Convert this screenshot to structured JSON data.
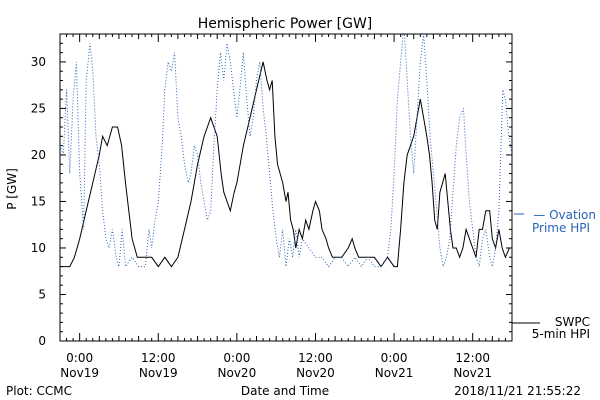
{
  "chart_data": {
    "type": "line",
    "title": "Hemispheric Power [GW]",
    "ylabel": "P [GW]",
    "xlabel": "Date and Time",
    "ylim": [
      0,
      33
    ],
    "yticks": [
      0,
      5,
      10,
      15,
      20,
      25,
      30
    ],
    "x_range_hours": [
      -3,
      66
    ],
    "xticks": [
      {
        "hour": 0,
        "time": "0:00",
        "date": "Nov19"
      },
      {
        "hour": 12,
        "time": "12:00",
        "date": "Nov19"
      },
      {
        "hour": 24,
        "time": "0:00",
        "date": "Nov20"
      },
      {
        "hour": 36,
        "time": "12:00",
        "date": "Nov20"
      },
      {
        "hour": 48,
        "time": "0:00",
        "date": "Nov21"
      },
      {
        "hour": 60,
        "time": "12:00",
        "date": "Nov21"
      }
    ],
    "series": [
      {
        "name": "SWPC 5-min HPI",
        "style": "solid",
        "color": "#000000",
        "points": [
          [
            -3,
            8
          ],
          [
            -1.5,
            8
          ],
          [
            -0.8,
            9
          ],
          [
            0,
            11
          ],
          [
            1,
            14
          ],
          [
            2,
            17
          ],
          [
            3,
            20
          ],
          [
            3.5,
            22
          ],
          [
            4.2,
            21
          ],
          [
            5,
            23
          ],
          [
            5.8,
            23
          ],
          [
            6.4,
            21
          ],
          [
            7,
            17
          ],
          [
            7.5,
            14
          ],
          [
            8,
            11
          ],
          [
            8.8,
            9
          ],
          [
            9.5,
            9
          ],
          [
            11,
            9
          ],
          [
            12,
            8
          ],
          [
            13,
            9
          ],
          [
            14,
            8
          ],
          [
            15,
            9
          ],
          [
            16,
            12
          ],
          [
            17,
            15
          ],
          [
            18,
            19
          ],
          [
            19,
            22
          ],
          [
            19.5,
            23
          ],
          [
            20,
            24
          ],
          [
            20.5,
            23
          ],
          [
            21,
            22
          ],
          [
            21.6,
            18
          ],
          [
            22,
            16
          ],
          [
            23,
            14
          ],
          [
            23.6,
            16
          ],
          [
            24,
            17
          ],
          [
            25,
            21
          ],
          [
            26,
            24
          ],
          [
            27,
            27
          ],
          [
            28,
            30
          ],
          [
            28.6,
            28
          ],
          [
            29,
            27
          ],
          [
            29.4,
            28
          ],
          [
            29.8,
            22
          ],
          [
            30.2,
            19
          ],
          [
            30.6,
            18
          ],
          [
            31,
            17
          ],
          [
            31.5,
            15
          ],
          [
            31.8,
            16
          ],
          [
            32.2,
            13
          ],
          [
            32.6,
            12
          ],
          [
            33,
            10
          ],
          [
            33.5,
            12
          ],
          [
            34,
            11
          ],
          [
            34.5,
            13
          ],
          [
            35,
            12
          ],
          [
            35.6,
            14
          ],
          [
            36,
            15
          ],
          [
            36.6,
            14
          ],
          [
            37,
            12
          ],
          [
            37.6,
            11
          ],
          [
            38,
            10
          ],
          [
            38.6,
            9
          ],
          [
            40,
            9
          ],
          [
            41,
            10
          ],
          [
            41.6,
            11
          ],
          [
            42,
            10
          ],
          [
            42.6,
            9
          ],
          [
            44,
            9
          ],
          [
            45,
            9
          ],
          [
            46,
            8
          ],
          [
            47,
            9
          ],
          [
            48,
            8
          ],
          [
            48.5,
            8
          ],
          [
            49,
            12
          ],
          [
            49.5,
            17
          ],
          [
            50,
            20
          ],
          [
            50.5,
            21
          ],
          [
            51,
            22
          ],
          [
            51.5,
            24
          ],
          [
            52,
            26
          ],
          [
            52.5,
            24
          ],
          [
            53,
            22
          ],
          [
            53.4,
            20
          ],
          [
            53.8,
            17
          ],
          [
            54.2,
            13
          ],
          [
            54.6,
            12
          ],
          [
            55,
            16
          ],
          [
            55.4,
            17
          ],
          [
            55.8,
            18
          ],
          [
            56.2,
            15
          ],
          [
            56.6,
            12
          ],
          [
            57,
            10
          ],
          [
            57.5,
            10
          ],
          [
            58,
            9
          ],
          [
            58.5,
            10
          ],
          [
            59,
            12
          ],
          [
            59.5,
            11
          ],
          [
            60,
            10
          ],
          [
            60.5,
            9
          ],
          [
            61,
            12
          ],
          [
            61.5,
            12
          ],
          [
            62,
            14
          ],
          [
            62.6,
            14
          ],
          [
            63,
            11
          ],
          [
            63.5,
            10
          ],
          [
            64,
            12
          ],
          [
            64.5,
            10
          ],
          [
            65,
            9
          ],
          [
            65.6,
            10
          ]
        ]
      },
      {
        "name": "Ovation Prime HPI",
        "style": "dotted",
        "color": "#2a63b8",
        "points": [
          [
            -3,
            21
          ],
          [
            -2.5,
            20
          ],
          [
            -2,
            27
          ],
          [
            -1.5,
            18
          ],
          [
            -1,
            26
          ],
          [
            -0.5,
            30
          ],
          [
            0,
            18
          ],
          [
            0.6,
            12
          ],
          [
            1,
            28
          ],
          [
            1.6,
            32
          ],
          [
            2,
            29
          ],
          [
            2.5,
            22
          ],
          [
            3,
            19
          ],
          [
            3.5,
            14
          ],
          [
            4,
            11
          ],
          [
            4.5,
            10
          ],
          [
            5,
            12
          ],
          [
            5.6,
            9
          ],
          [
            6,
            8
          ],
          [
            6.5,
            12
          ],
          [
            7,
            8
          ],
          [
            8,
            9
          ],
          [
            9,
            8
          ],
          [
            10,
            8
          ],
          [
            10.6,
            12
          ],
          [
            11,
            10
          ],
          [
            11.5,
            13
          ],
          [
            12,
            15
          ],
          [
            12.6,
            21
          ],
          [
            13,
            27
          ],
          [
            13.5,
            30
          ],
          [
            14,
            29
          ],
          [
            14.5,
            31
          ],
          [
            15,
            24
          ],
          [
            15.5,
            22
          ],
          [
            16,
            19
          ],
          [
            16.6,
            17
          ],
          [
            17,
            18
          ],
          [
            17.5,
            21
          ],
          [
            18,
            20
          ],
          [
            18.5,
            17
          ],
          [
            19,
            15
          ],
          [
            19.5,
            13
          ],
          [
            20,
            14
          ],
          [
            20.5,
            21
          ],
          [
            21,
            27
          ],
          [
            21.5,
            31
          ],
          [
            22,
            28
          ],
          [
            22.5,
            32
          ],
          [
            23,
            30
          ],
          [
            23.5,
            27
          ],
          [
            24,
            24
          ],
          [
            24.6,
            28
          ],
          [
            25,
            31
          ],
          [
            25.5,
            26
          ],
          [
            26,
            22
          ],
          [
            26.5,
            24
          ],
          [
            27,
            28
          ],
          [
            27.5,
            30
          ],
          [
            28,
            25
          ],
          [
            28.5,
            22
          ],
          [
            29,
            18
          ],
          [
            29.5,
            14
          ],
          [
            30,
            11
          ],
          [
            30.5,
            9
          ],
          [
            31,
            12
          ],
          [
            31.5,
            8
          ],
          [
            32,
            11
          ],
          [
            32.5,
            9
          ],
          [
            33,
            12
          ],
          [
            33.5,
            9
          ],
          [
            34,
            11
          ],
          [
            35,
            10
          ],
          [
            36,
            9
          ],
          [
            37,
            9
          ],
          [
            38,
            8
          ],
          [
            39,
            9
          ],
          [
            40,
            9
          ],
          [
            41,
            8
          ],
          [
            42,
            9
          ],
          [
            43,
            8
          ],
          [
            44,
            9
          ],
          [
            45,
            8
          ],
          [
            46,
            8
          ],
          [
            47,
            9
          ],
          [
            47.5,
            12
          ],
          [
            48,
            18
          ],
          [
            48.5,
            26
          ],
          [
            49,
            30
          ],
          [
            49.5,
            34
          ],
          [
            50,
            28
          ],
          [
            50.5,
            22
          ],
          [
            51,
            18
          ],
          [
            51.5,
            24
          ],
          [
            52,
            30
          ],
          [
            52.5,
            33
          ],
          [
            53,
            28
          ],
          [
            53.5,
            22
          ],
          [
            54,
            18
          ],
          [
            54.5,
            14
          ],
          [
            55,
            10
          ],
          [
            55.5,
            8
          ],
          [
            56,
            9
          ],
          [
            56.5,
            11
          ],
          [
            57,
            16
          ],
          [
            57.5,
            21
          ],
          [
            58,
            24
          ],
          [
            58.6,
            25
          ],
          [
            59,
            20
          ],
          [
            59.5,
            15
          ],
          [
            60,
            12
          ],
          [
            60.5,
            9
          ],
          [
            61,
            8
          ],
          [
            61.5,
            11
          ],
          [
            62,
            12
          ],
          [
            62.6,
            9
          ],
          [
            63,
            8
          ],
          [
            63.5,
            10
          ],
          [
            64,
            14
          ],
          [
            64.6,
            27
          ],
          [
            65,
            26
          ],
          [
            65.5,
            22
          ],
          [
            66,
            20
          ]
        ]
      }
    ],
    "legend": [
      {
        "label_line1": "— Ovation",
        "label_line2": "Prime HPI",
        "color": "#2a63b8"
      },
      {
        "label_line1": "SWPC",
        "label_line2": "5-min HPI",
        "color": "#000000"
      }
    ],
    "footer_left": "Plot: CCMC",
    "footer_right": "2018/11/21 21:55:22",
    "grid": false
  }
}
